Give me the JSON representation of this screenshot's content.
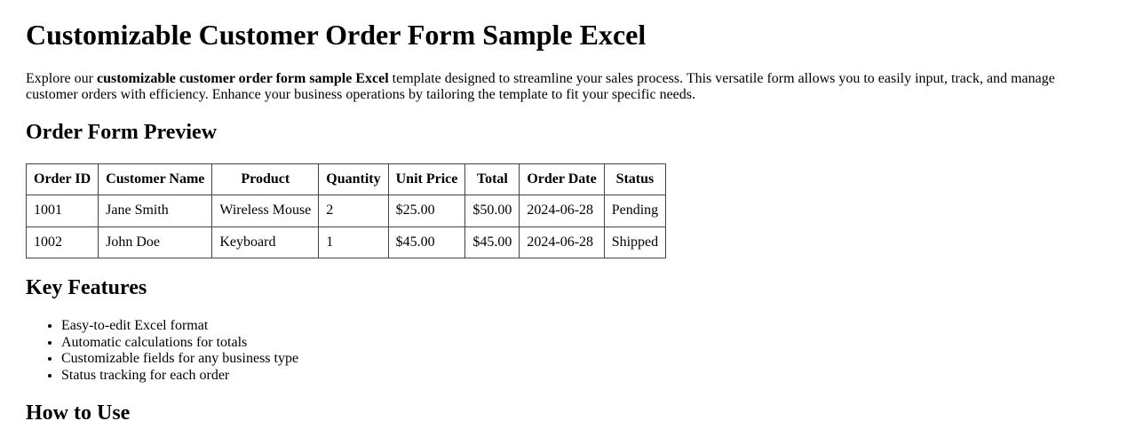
{
  "page": {
    "title": "Customizable Customer Order Form Sample Excel",
    "intro": {
      "pre": "Explore our ",
      "bold": "customizable customer order form sample Excel",
      "post": " template designed to streamline your sales process. This versatile form allows you to easily input, track, and manage customer orders with efficiency. Enhance your business operations by tailoring the template to fit your specific needs."
    }
  },
  "sections": {
    "preview_heading": "Order Form Preview",
    "features_heading": "Key Features",
    "how_to_heading": "How to Use"
  },
  "order_table": {
    "headers": [
      "Order ID",
      "Customer Name",
      "Product",
      "Quantity",
      "Unit Price",
      "Total",
      "Order Date",
      "Status"
    ],
    "rows": [
      [
        "1001",
        "Jane Smith",
        "Wireless Mouse",
        "2",
        "$25.00",
        "$50.00",
        "2024-06-28",
        "Pending"
      ],
      [
        "1002",
        "John Doe",
        "Keyboard",
        "1",
        "$45.00",
        "$45.00",
        "2024-06-28",
        "Shipped"
      ]
    ]
  },
  "features": [
    "Easy-to-edit Excel format",
    "Automatic calculations for totals",
    "Customizable fields for any business type",
    "Status tracking for each order"
  ],
  "colors": {
    "background": "#ffffff",
    "text": "#000000",
    "table_border": "#444444"
  }
}
